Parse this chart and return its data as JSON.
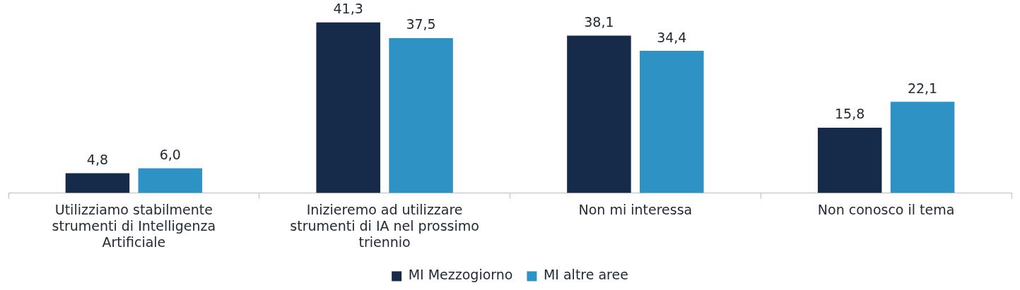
{
  "chart_data": {
    "type": "bar",
    "categories": [
      "Utilizziamo stabilmente strumenti di Intelligenza Artificiale",
      "Inizieremo ad utilizzare strumenti di IA nel prossimo triennio",
      "Non mi interessa",
      "Non conosco il tema"
    ],
    "series": [
      {
        "name": "MI Mezzogiorno",
        "color": "#162a4a",
        "values": [
          4.8,
          41.3,
          38.1,
          15.8
        ],
        "value_labels": [
          "4,8",
          "41,3",
          "38,1",
          "15,8"
        ]
      },
      {
        "name": "MI altre aree",
        "color": "#2e92c5",
        "values": [
          6.0,
          37.5,
          34.4,
          22.1
        ],
        "value_labels": [
          "6,0",
          "37,5",
          "34,4",
          "22,1"
        ]
      }
    ],
    "legend": "bottom",
    "grid": false
  }
}
